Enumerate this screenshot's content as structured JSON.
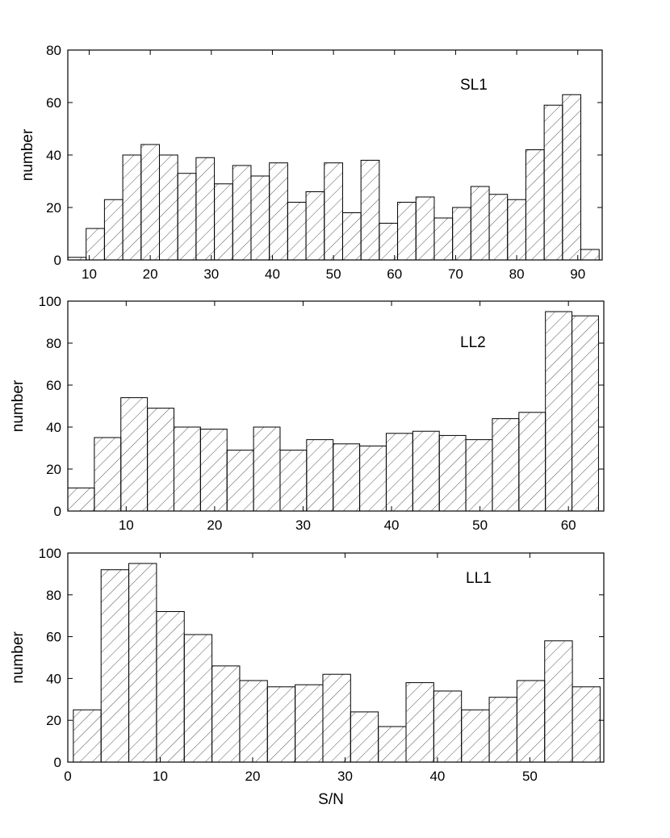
{
  "chart_data": [
    {
      "type": "bar",
      "panel_label": "SL1",
      "ylabel": "number",
      "xlabel": "",
      "xlim": [
        6.5,
        94
      ],
      "ylim": [
        0,
        80
      ],
      "xticks": [
        10,
        20,
        30,
        40,
        50,
        60,
        70,
        80,
        90
      ],
      "yticks": [
        0,
        20,
        40,
        60,
        80
      ],
      "bin_start": 6.5,
      "bin_width": 3.0,
      "values": [
        1,
        12,
        23,
        40,
        44,
        40,
        33,
        39,
        29,
        36,
        32,
        37,
        22,
        26,
        37,
        18,
        38,
        14,
        22,
        24,
        16,
        20,
        28,
        25,
        23,
        42,
        59,
        63,
        4
      ],
      "fill_pattern": "diagonal-hatch"
    },
    {
      "type": "bar",
      "panel_label": "LL2",
      "ylabel": "number",
      "xlabel": "",
      "xlim": [
        3.4,
        64
      ],
      "ylim": [
        0,
        100
      ],
      "xticks": [
        10,
        20,
        30,
        40,
        50,
        60
      ],
      "yticks": [
        0,
        20,
        40,
        60,
        80,
        100
      ],
      "bin_start": 3.4,
      "bin_width": 3.0,
      "values": [
        11,
        35,
        54,
        49,
        40,
        39,
        29,
        40,
        29,
        34,
        32,
        31,
        37,
        38,
        36,
        34,
        44,
        47,
        95,
        93
      ],
      "fill_pattern": "diagonal-hatch"
    },
    {
      "type": "bar",
      "panel_label": "LL1",
      "ylabel": "number",
      "xlabel": "S/N",
      "xlim": [
        0,
        58
      ],
      "ylim": [
        0,
        100
      ],
      "xticks": [
        0,
        10,
        20,
        30,
        40,
        50
      ],
      "yticks": [
        0,
        20,
        40,
        60,
        80,
        100
      ],
      "bin_start": 0.6,
      "bin_width": 3.0,
      "values": [
        25,
        92,
        95,
        72,
        61,
        46,
        39,
        36,
        37,
        42,
        24,
        17,
        38,
        34,
        25,
        31,
        39,
        58,
        36
      ],
      "fill_pattern": "diagonal-hatch"
    }
  ]
}
